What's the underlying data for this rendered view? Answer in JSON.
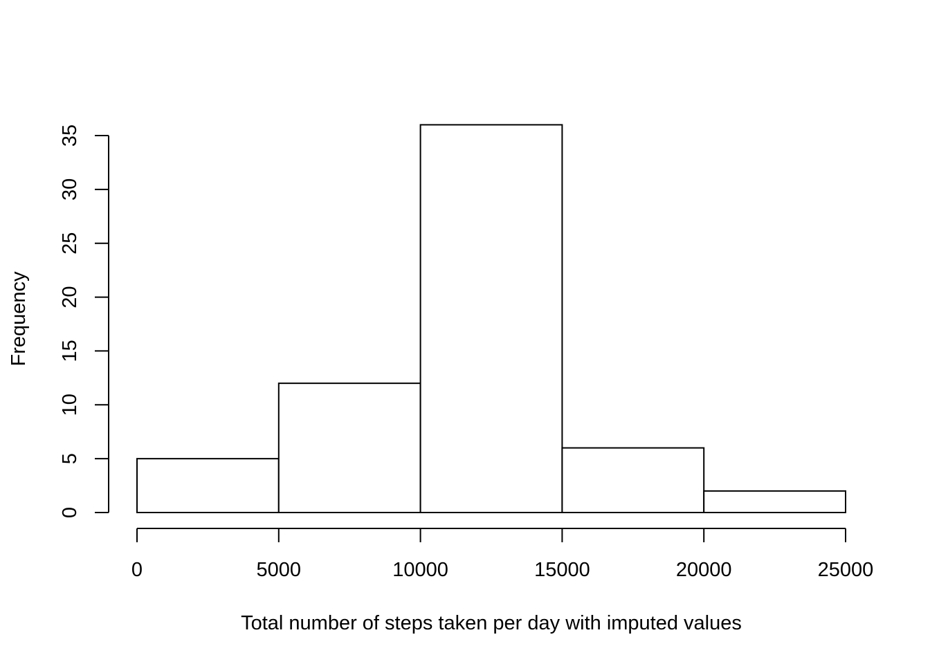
{
  "chart_data": {
    "type": "bar",
    "title": "",
    "xlabel": "Total number of steps taken per day with imputed values",
    "ylabel": "Frequency",
    "bins": [
      {
        "start": 0,
        "end": 5000,
        "value": 5
      },
      {
        "start": 5000,
        "end": 10000,
        "value": 12
      },
      {
        "start": 10000,
        "end": 15000,
        "value": 36
      },
      {
        "start": 15000,
        "end": 20000,
        "value": 6
      },
      {
        "start": 20000,
        "end": 25000,
        "value": 2
      }
    ],
    "xlim": [
      0,
      25000
    ],
    "ylim": [
      0,
      35
    ],
    "x_ticks": [
      "0",
      "5000",
      "10000",
      "15000",
      "20000",
      "25000"
    ],
    "y_ticks": [
      "0",
      "5",
      "10",
      "15",
      "20",
      "25",
      "30",
      "35"
    ],
    "grid": false,
    "legend": "none",
    "bar_fill": "#ffffff",
    "bar_stroke": "#000000"
  }
}
